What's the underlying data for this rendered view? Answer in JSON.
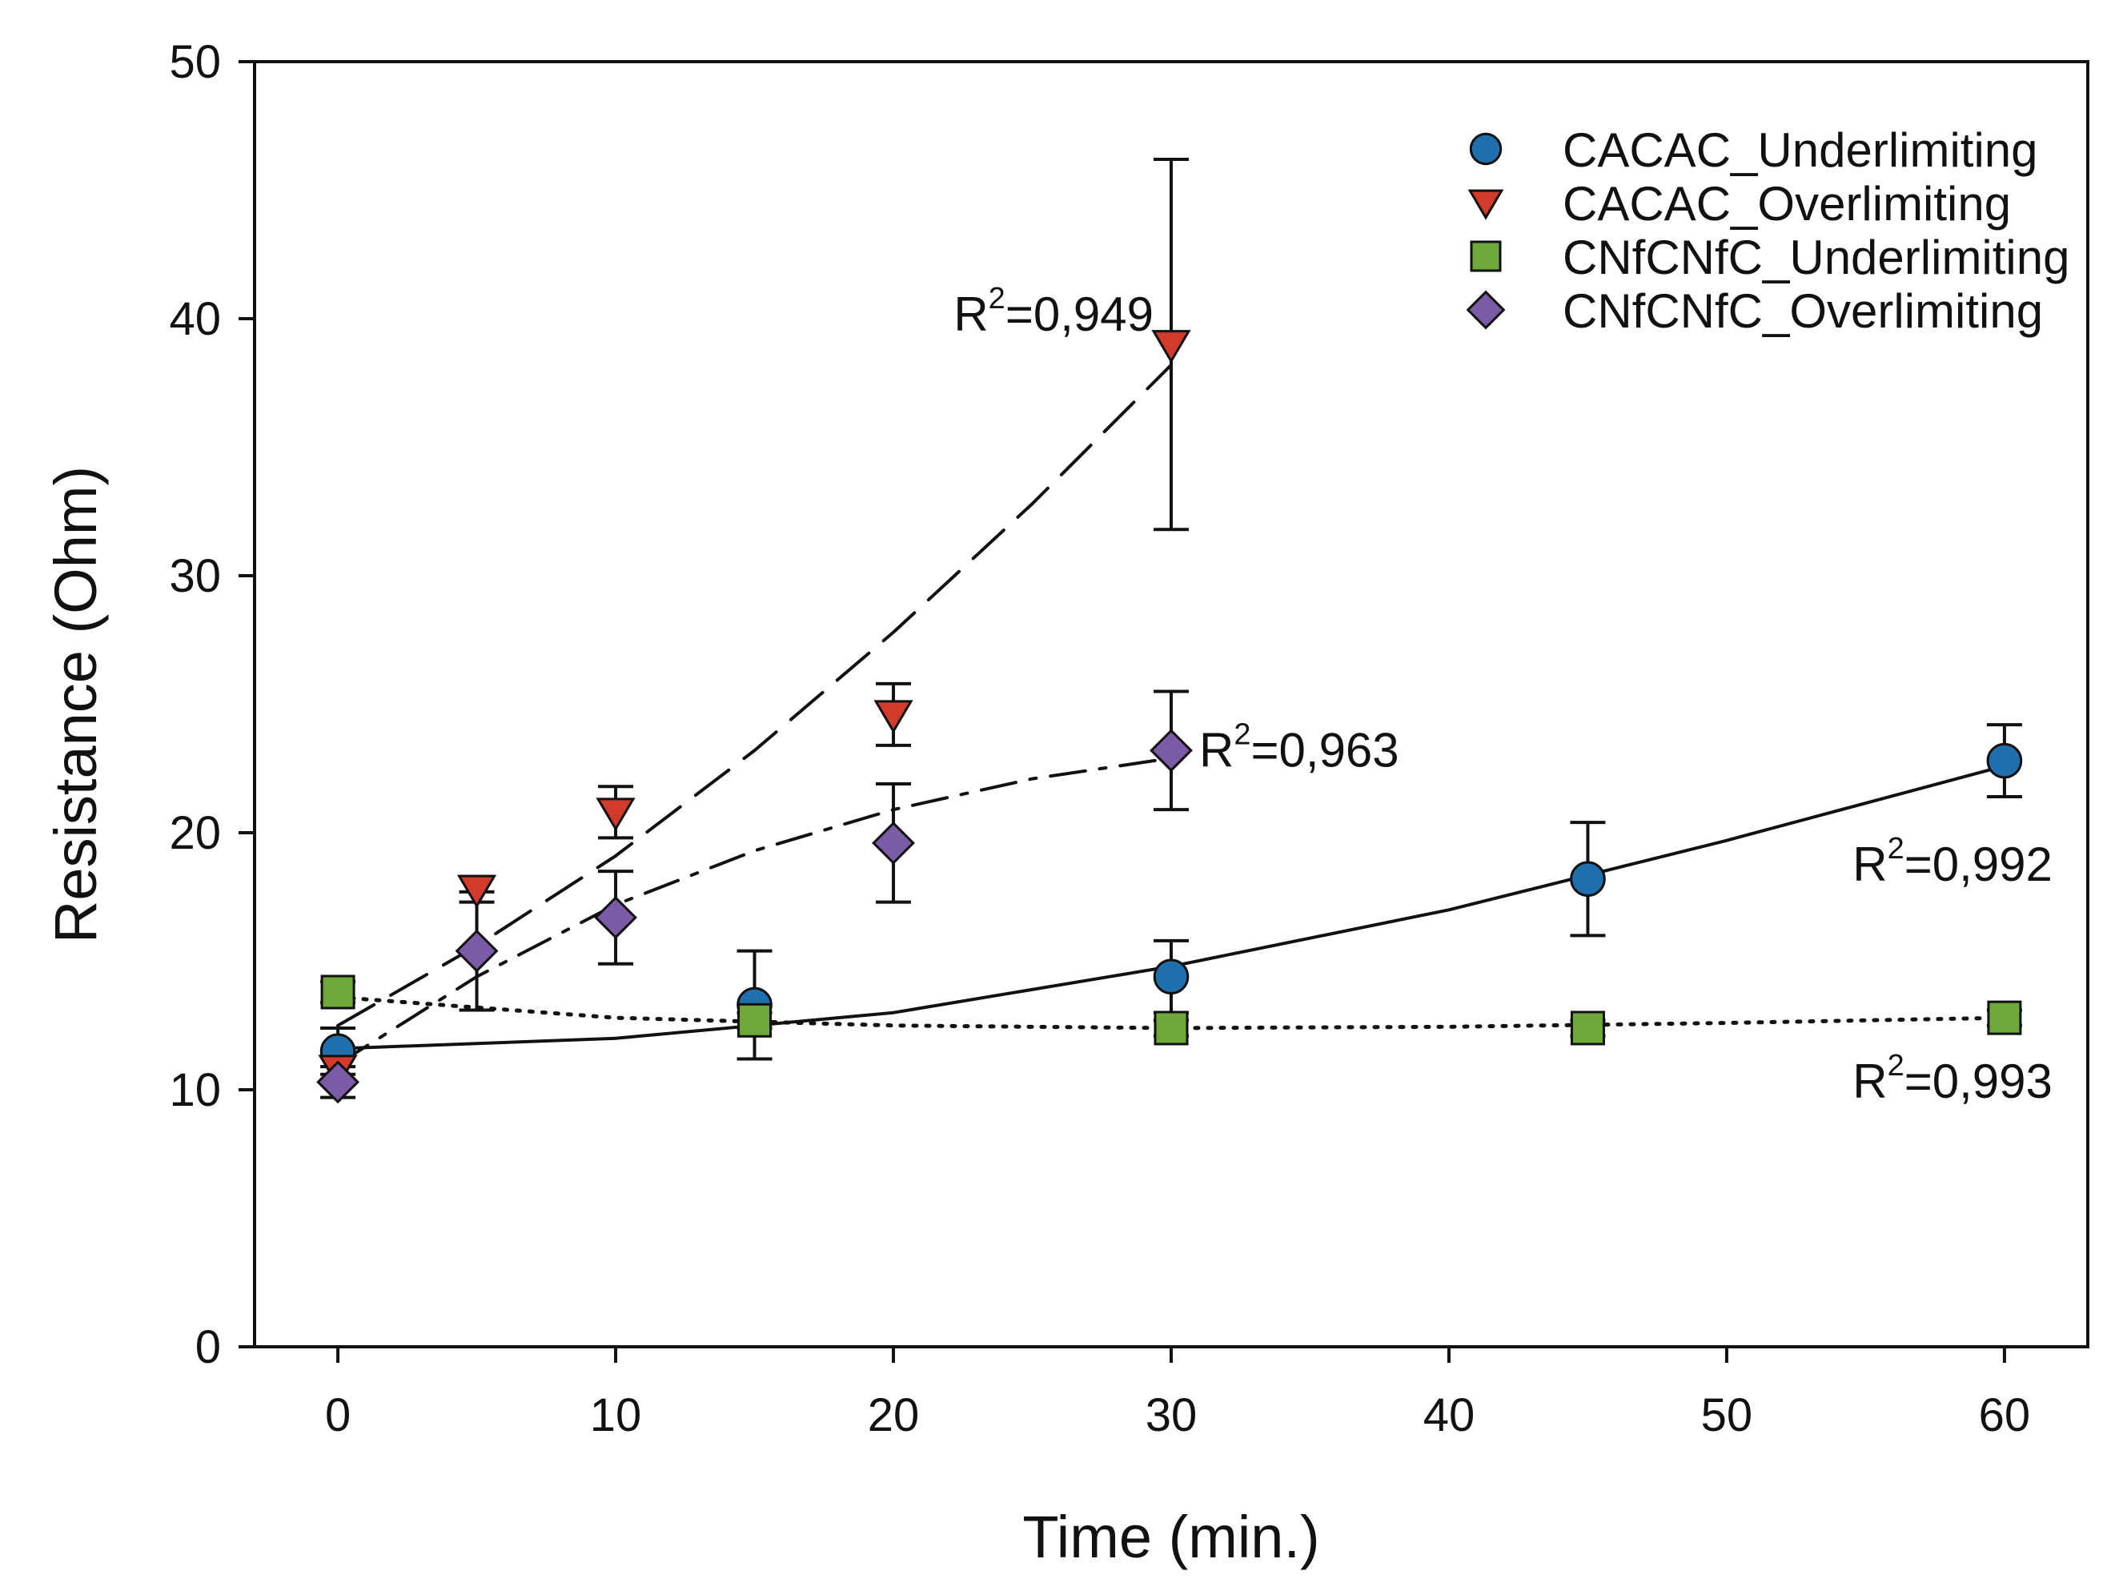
{
  "chart_data": {
    "type": "scatter",
    "title": "",
    "xlabel": "Time (min.)",
    "ylabel": "Resistance (Ohm)",
    "xlim": [
      -3,
      63
    ],
    "ylim": [
      0,
      50
    ],
    "xticks": [
      0,
      10,
      20,
      30,
      40,
      50,
      60
    ],
    "yticks": [
      0,
      10,
      20,
      30,
      40,
      50
    ],
    "grid": false,
    "legend_position": "top-right",
    "series": [
      {
        "name": "CACAC_Underlimiting",
        "marker": "circle",
        "color": "#1f6fad",
        "line_style": "solid",
        "x": [
          0,
          15,
          30,
          45,
          60
        ],
        "y": [
          11.5,
          13.3,
          14.4,
          18.2,
          22.8
        ],
        "err": [
          0.9,
          2.1,
          1.4,
          2.2,
          1.4
        ],
        "fit_x": [
          0,
          10,
          20,
          30,
          40,
          50,
          60
        ],
        "fit_y": [
          11.6,
          12.0,
          13.0,
          14.8,
          17.0,
          19.7,
          22.6
        ],
        "r2": "0,992"
      },
      {
        "name": "CACAC_Overlimiting",
        "marker": "triangle-down",
        "color": "#d23a2c",
        "line_style": "long-dash",
        "x": [
          0,
          5,
          10,
          20,
          30
        ],
        "y": [
          10.8,
          17.8,
          20.8,
          24.6,
          39.0
        ],
        "err": [
          0.6,
          0.5,
          1.0,
          1.2,
          7.2
        ],
        "fit_x": [
          0,
          5,
          10,
          15,
          20,
          25,
          30
        ],
        "fit_y": [
          12.5,
          15.6,
          19.1,
          23.2,
          27.8,
          32.8,
          38.2
        ],
        "r2": "0,949"
      },
      {
        "name": "CNfCNfC_Underlimiting",
        "marker": "square",
        "color": "#6fa83a",
        "line_style": "dotted",
        "x": [
          0,
          15,
          30,
          45,
          60
        ],
        "y": [
          13.8,
          12.7,
          12.4,
          12.4,
          12.8
        ],
        "err": [
          0.4,
          0.3,
          0.3,
          0.3,
          0.3
        ],
        "fit_x": [
          0,
          10,
          20,
          30,
          40,
          50,
          60
        ],
        "fit_y": [
          13.6,
          12.8,
          12.5,
          12.4,
          12.45,
          12.6,
          12.8
        ],
        "r2": "0,993"
      },
      {
        "name": "CNfCNfC_Overlimiting",
        "marker": "diamond",
        "color": "#7b5aa6",
        "line_style": "dash-dot",
        "x": [
          0,
          5,
          10,
          20,
          30
        ],
        "y": [
          10.3,
          15.4,
          16.7,
          19.6,
          23.2
        ],
        "err": [
          0.6,
          2.3,
          1.8,
          2.3,
          2.3
        ],
        "fit_x": [
          0,
          5,
          10,
          15,
          20,
          25,
          30
        ],
        "fit_y": [
          11.0,
          14.4,
          17.2,
          19.3,
          20.9,
          22.1,
          22.9
        ],
        "r2": "0,963"
      }
    ],
    "r2_prefix": "R",
    "r2_exponent": "2",
    "r2_equals": "=",
    "annotations": [
      {
        "series": "CACAC_Overlimiting",
        "text": "0,949",
        "anchor": "left-of-last-point"
      },
      {
        "series": "CNfCNfC_Overlimiting",
        "text": "0,963",
        "anchor": "right-of-last-point"
      },
      {
        "series": "CACAC_Underlimiting",
        "text": "0,992",
        "anchor": "below-last-point"
      },
      {
        "series": "CNfCNfC_Underlimiting",
        "text": "0,993",
        "anchor": "below-last-point"
      }
    ]
  }
}
